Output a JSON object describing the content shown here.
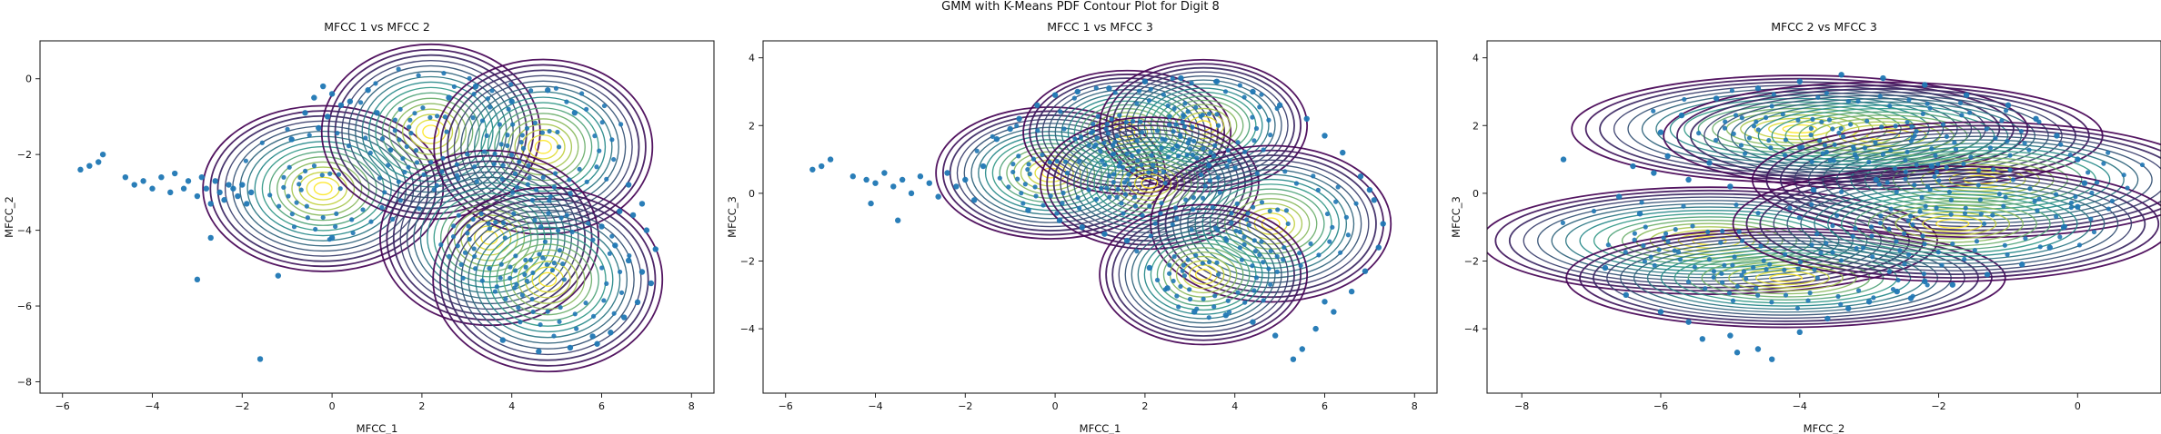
{
  "figure_title": "GMM with K-Means PDF Contour Plot for Digit 8",
  "colors": {
    "scatter": "#1f77b4",
    "contour_low": "#440154",
    "contour_mid": "#21918c",
    "contour_high": "#fde725"
  },
  "chart_data": [
    {
      "type": "scatter",
      "title": "MFCC 1 vs MFCC 2",
      "xlabel": "MFCC_1",
      "ylabel": "MFCC_2",
      "xlim": [
        -6.5,
        8.5
      ],
      "ylim": [
        -8.3,
        1.0
      ],
      "xticks": [
        -6,
        -4,
        -2,
        0,
        2,
        4,
        6,
        8
      ],
      "xtick_labels": [
        "−6",
        "−4",
        "−2",
        "0",
        "2",
        "4",
        "6",
        "8"
      ],
      "yticks": [
        0,
        -2,
        -4,
        -6,
        -8
      ],
      "ytick_labels": [
        "0",
        "−2",
        "−4",
        "−6",
        "−8"
      ],
      "grid": false,
      "components": [
        {
          "mean": [
            -0.2,
            -2.9
          ],
          "sd": [
            1.1,
            0.9
          ]
        },
        {
          "mean": [
            2.2,
            -1.4
          ],
          "sd": [
            1.0,
            0.95
          ]
        },
        {
          "mean": [
            4.7,
            -1.8
          ],
          "sd": [
            1.0,
            0.95
          ]
        },
        {
          "mean": [
            3.5,
            -4.2
          ],
          "sd": [
            1.0,
            0.95
          ]
        },
        {
          "mean": [
            4.8,
            -5.3
          ],
          "sd": [
            1.05,
            1.0
          ]
        }
      ],
      "points": [
        [
          -5.2,
          -2.2
        ],
        [
          -5.1,
          -2.0
        ],
        [
          -5.6,
          -2.4
        ],
        [
          -5.4,
          -2.3
        ],
        [
          -4.6,
          -2.6
        ],
        [
          -4.4,
          -2.8
        ],
        [
          -4.2,
          -2.7
        ],
        [
          -4.0,
          -2.9
        ],
        [
          -3.8,
          -2.6
        ],
        [
          -3.6,
          -3.0
        ],
        [
          -3.5,
          -2.5
        ],
        [
          -3.3,
          -2.9
        ],
        [
          -3.2,
          -2.7
        ],
        [
          -3.0,
          -3.1
        ],
        [
          -2.9,
          -2.6
        ],
        [
          -2.8,
          -2.9
        ],
        [
          -2.7,
          -3.3
        ],
        [
          -2.6,
          -2.7
        ],
        [
          -2.5,
          -3.0
        ],
        [
          -2.4,
          -3.2
        ],
        [
          -2.3,
          -2.8
        ],
        [
          -2.2,
          -2.9
        ],
        [
          -2.1,
          -3.1
        ],
        [
          -2.0,
          -2.8
        ],
        [
          -1.9,
          -3.3
        ],
        [
          -1.8,
          -3.0
        ],
        [
          -3.0,
          -5.3
        ],
        [
          -1.6,
          -7.4
        ],
        [
          -2.7,
          -4.2
        ],
        [
          -1.2,
          -5.2
        ],
        [
          -0.9,
          -1.6
        ],
        [
          -0.6,
          -0.9
        ],
        [
          -0.4,
          -0.5
        ],
        [
          -0.2,
          -0.2
        ],
        [
          0.0,
          -0.4
        ],
        [
          0.2,
          -0.7
        ],
        [
          -0.3,
          -1.3
        ],
        [
          -0.1,
          -1.0
        ],
        [
          0.4,
          -0.6
        ],
        [
          1.0,
          -0.9
        ],
        [
          0.8,
          -0.3
        ],
        [
          0.0,
          -4.2
        ],
        [
          6.0,
          -3.9
        ],
        [
          6.3,
          -4.4
        ],
        [
          6.6,
          -4.8
        ],
        [
          6.9,
          -5.1
        ],
        [
          7.1,
          -5.4
        ],
        [
          6.8,
          -5.9
        ],
        [
          6.5,
          -6.3
        ],
        [
          6.2,
          -6.7
        ],
        [
          5.9,
          -7.0
        ],
        [
          7.2,
          -4.5
        ],
        [
          7.0,
          -4.0
        ],
        [
          6.4,
          -3.5
        ],
        [
          6.7,
          -3.6
        ],
        [
          5.8,
          -6.8
        ],
        [
          5.3,
          -7.1
        ],
        [
          4.6,
          -7.2
        ],
        [
          3.8,
          -6.9
        ],
        [
          4.0,
          -0.6
        ],
        [
          4.8,
          -0.3
        ],
        [
          5.4,
          -0.9
        ],
        [
          3.2,
          -0.2
        ],
        [
          2.6,
          -0.5
        ],
        [
          6.6,
          -2.8
        ],
        [
          6.9,
          -3.3
        ]
      ]
    },
    {
      "type": "scatter",
      "title": "MFCC 1 vs MFCC 3",
      "xlabel": "MFCC_1",
      "ylabel": "MFCC_3",
      "xlim": [
        -6.5,
        8.5
      ],
      "ylim": [
        -5.9,
        4.5
      ],
      "xticks": [
        -6,
        -4,
        -2,
        0,
        2,
        4,
        6,
        8
      ],
      "xtick_labels": [
        "−6",
        "−4",
        "−2",
        "0",
        "2",
        "4",
        "6",
        "8"
      ],
      "yticks": [
        4,
        2,
        0,
        -2,
        -4
      ],
      "ytick_labels": [
        "4",
        "2",
        "0",
        "−2",
        "−4"
      ],
      "grid": false,
      "components": [
        {
          "mean": [
            -0.1,
            0.6
          ],
          "sd": [
            1.05,
            0.8
          ]
        },
        {
          "mean": [
            1.6,
            1.8
          ],
          "sd": [
            0.95,
            0.75
          ]
        },
        {
          "mean": [
            3.3,
            2.0
          ],
          "sd": [
            0.95,
            0.8
          ]
        },
        {
          "mean": [
            2.1,
            0.3
          ],
          "sd": [
            1.0,
            0.8
          ]
        },
        {
          "mean": [
            4.8,
            -0.9
          ],
          "sd": [
            1.1,
            0.95
          ]
        },
        {
          "mean": [
            3.3,
            -2.4
          ],
          "sd": [
            0.95,
            0.85
          ]
        }
      ],
      "points": [
        [
          -5.4,
          0.7
        ],
        [
          -5.2,
          0.8
        ],
        [
          -5.0,
          1.0
        ],
        [
          -4.5,
          0.5
        ],
        [
          -4.2,
          0.4
        ],
        [
          -4.0,
          0.3
        ],
        [
          -3.8,
          0.6
        ],
        [
          -3.6,
          0.2
        ],
        [
          -3.4,
          0.4
        ],
        [
          -3.2,
          0.0
        ],
        [
          -3.0,
          0.5
        ],
        [
          -2.8,
          0.3
        ],
        [
          -2.6,
          -0.1
        ],
        [
          -2.4,
          0.6
        ],
        [
          -2.2,
          0.2
        ],
        [
          -2.0,
          0.4
        ],
        [
          -1.8,
          -0.2
        ],
        [
          -1.6,
          0.8
        ],
        [
          -4.1,
          -0.3
        ],
        [
          -3.5,
          -0.8
        ],
        [
          -1.3,
          1.6
        ],
        [
          -0.8,
          2.2
        ],
        [
          -0.4,
          2.6
        ],
        [
          0.0,
          2.9
        ],
        [
          0.5,
          3.0
        ],
        [
          1.2,
          3.1
        ],
        [
          2.0,
          3.3
        ],
        [
          2.8,
          3.4
        ],
        [
          3.6,
          3.3
        ],
        [
          4.4,
          3.0
        ],
        [
          5.0,
          2.6
        ],
        [
          5.6,
          2.2
        ],
        [
          6.0,
          1.7
        ],
        [
          6.4,
          1.2
        ],
        [
          6.8,
          0.5
        ],
        [
          7.1,
          -0.2
        ],
        [
          7.3,
          -0.9
        ],
        [
          7.2,
          -1.6
        ],
        [
          6.9,
          -2.3
        ],
        [
          6.6,
          -2.9
        ],
        [
          6.2,
          -3.5
        ],
        [
          5.8,
          -4.0
        ],
        [
          5.5,
          -4.6
        ],
        [
          5.3,
          -4.9
        ],
        [
          4.9,
          -4.2
        ],
        [
          4.4,
          -3.8
        ],
        [
          3.8,
          -3.6
        ],
        [
          3.1,
          -3.5
        ],
        [
          2.5,
          -2.8
        ],
        [
          2.1,
          -2.2
        ],
        [
          1.6,
          -1.4
        ],
        [
          1.1,
          -1.2
        ],
        [
          0.6,
          -1.0
        ],
        [
          0.1,
          -0.8
        ],
        [
          -0.6,
          -0.5
        ],
        [
          -1.0,
          1.9
        ],
        [
          6.0,
          -3.2
        ],
        [
          7.0,
          0.1
        ]
      ]
    },
    {
      "type": "scatter",
      "title": "MFCC 2 vs MFCC 3",
      "xlabel": "MFCC_2",
      "ylabel": "MFCC_3",
      "xlim": [
        -8.5,
        1.2
      ],
      "ylim": [
        -5.9,
        4.5
      ],
      "xticks": [
        -8,
        -6,
        -4,
        -2,
        0
      ],
      "xtick_labels": [
        "−8",
        "−6",
        "−4",
        "−2",
        "0"
      ],
      "yticks": [
        4,
        2,
        0,
        -2,
        -4
      ],
      "ytick_labels": [
        "4",
        "2",
        "0",
        "−2",
        "−4"
      ],
      "grid": false,
      "components": [
        {
          "mean": [
            -5.3,
            -1.4
          ],
          "sd": [
            1.35,
            0.65
          ]
        },
        {
          "mean": [
            -4.2,
            -2.5
          ],
          "sd": [
            1.3,
            0.6
          ]
        },
        {
          "mean": [
            -4.0,
            1.9
          ],
          "sd": [
            1.35,
            0.65
          ]
        },
        {
          "mean": [
            -2.8,
            1.7
          ],
          "sd": [
            1.3,
            0.65
          ]
        },
        {
          "mean": [
            -1.4,
            0.4
          ],
          "sd": [
            1.35,
            0.7
          ]
        },
        {
          "mean": [
            -1.8,
            -0.9
          ],
          "sd": [
            1.3,
            0.7
          ]
        }
      ],
      "points": [
        [
          -7.4,
          1.0
        ],
        [
          -6.4,
          0.8
        ],
        [
          -6.1,
          0.6
        ],
        [
          -5.9,
          1.1
        ],
        [
          -5.6,
          0.4
        ],
        [
          -5.3,
          0.9
        ],
        [
          -5.0,
          0.2
        ],
        [
          -6.6,
          -0.1
        ],
        [
          -6.3,
          -0.6
        ],
        [
          -6.8,
          -2.2
        ],
        [
          -6.5,
          -3.0
        ],
        [
          -6.0,
          -3.5
        ],
        [
          -5.6,
          -3.8
        ],
        [
          -5.0,
          -4.2
        ],
        [
          -4.6,
          -4.6
        ],
        [
          -4.4,
          -4.9
        ],
        [
          -4.0,
          -4.1
        ],
        [
          -3.6,
          -3.7
        ],
        [
          -3.0,
          -3.2
        ],
        [
          -2.6,
          -2.9
        ],
        [
          -2.2,
          -2.6
        ],
        [
          -1.8,
          -2.7
        ],
        [
          -1.3,
          -2.4
        ],
        [
          -0.8,
          -2.1
        ],
        [
          -0.4,
          -1.6
        ],
        [
          -0.2,
          -1.0
        ],
        [
          0.0,
          -0.4
        ],
        [
          0.1,
          0.3
        ],
        [
          0.0,
          1.0
        ],
        [
          -0.3,
          1.7
        ],
        [
          -0.6,
          2.2
        ],
        [
          -1.0,
          2.6
        ],
        [
          -1.6,
          2.9
        ],
        [
          -2.2,
          3.2
        ],
        [
          -2.8,
          3.4
        ],
        [
          -3.4,
          3.5
        ],
        [
          -4.0,
          3.3
        ],
        [
          -4.6,
          3.1
        ],
        [
          -5.2,
          2.8
        ],
        [
          -5.7,
          2.3
        ],
        [
          -6.0,
          1.8
        ],
        [
          -2.4,
          -3.1
        ],
        [
          -3.3,
          -3.4
        ],
        [
          -5.4,
          -4.3
        ],
        [
          -4.9,
          -4.7
        ],
        [
          -3.8,
          0.1
        ],
        [
          -2.9,
          0.4
        ],
        [
          -2.1,
          0.8
        ]
      ]
    }
  ]
}
